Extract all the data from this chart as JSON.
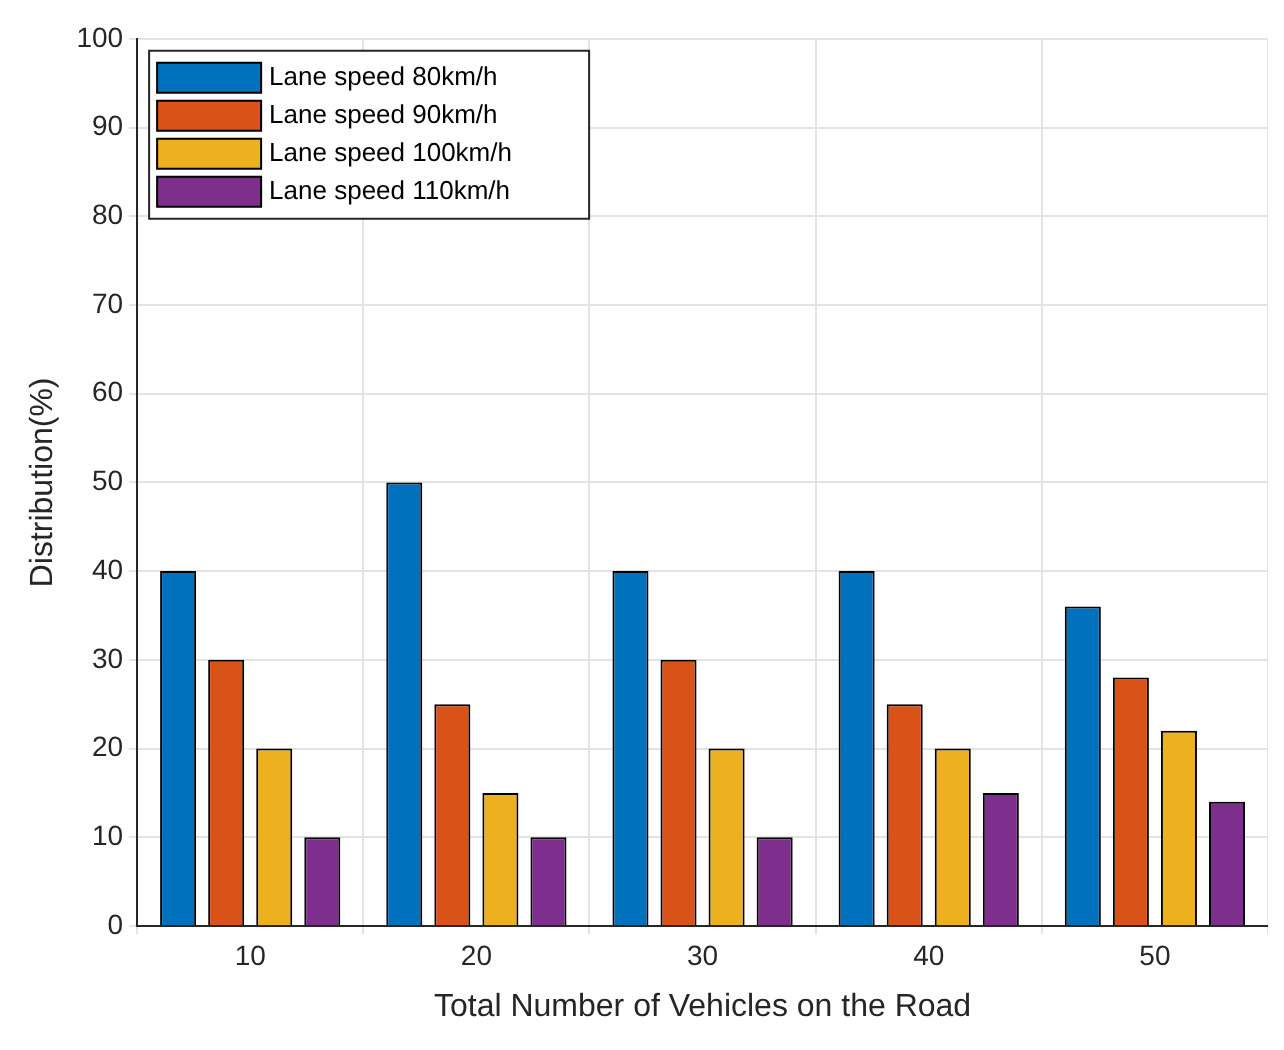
{
  "chart_data": {
    "type": "bar",
    "xlabel": "Total Number of Vehicles on the Road",
    "ylabel": "Distribution(%)",
    "categories": [
      "10",
      "20",
      "30",
      "40",
      "50"
    ],
    "series": [
      {
        "name": "Lane speed 80km/h",
        "color": "#0072bd",
        "values": [
          40,
          50,
          40,
          40,
          36
        ]
      },
      {
        "name": "Lane speed 90km/h",
        "color": "#d95319",
        "values": [
          30,
          25,
          30,
          25,
          28
        ]
      },
      {
        "name": "Lane speed 100km/h",
        "color": "#edb120",
        "values": [
          20,
          15,
          20,
          20,
          22
        ]
      },
      {
        "name": "Lane speed 110km/h",
        "color": "#7e2f8e",
        "values": [
          10,
          10,
          10,
          15,
          14
        ]
      }
    ],
    "ylim": [
      0,
      100
    ],
    "yticks": [
      0,
      10,
      20,
      30,
      40,
      50,
      60,
      70,
      80,
      90,
      100
    ],
    "grid": true,
    "legend": "top left"
  }
}
